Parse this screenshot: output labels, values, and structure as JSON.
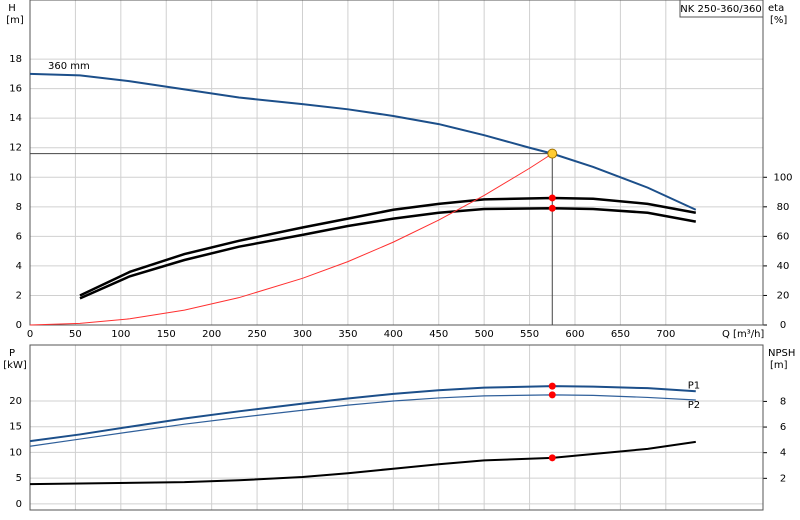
{
  "chart_data": [
    {
      "type": "line",
      "title": "NK 250-360/360",
      "ylabel": "H",
      "yunit": "[m]",
      "y2label": "eta",
      "y2unit": "[%]",
      "xlabel": "Q [m³/h]",
      "xlim": [
        0,
        807
      ],
      "xticks": [
        0,
        50,
        100,
        150,
        200,
        250,
        300,
        350,
        400,
        450,
        500,
        550,
        600,
        650,
        700
      ],
      "ylim": [
        0,
        22
      ],
      "yticks": [
        0,
        2,
        4,
        6,
        8,
        10,
        12,
        14,
        16,
        18
      ],
      "y2lim": [
        0,
        220
      ],
      "y2ticks": [
        0,
        20,
        40,
        60,
        80,
        100
      ],
      "grid": true,
      "series": [
        {
          "name": "360 mm",
          "color": "#1c4f8a",
          "width": 2,
          "x": [
            0,
            55,
            110,
            170,
            230,
            300,
            350,
            400,
            450,
            500,
            550,
            575,
            620,
            680,
            733
          ],
          "values": [
            17.0,
            16.9,
            16.5,
            15.95,
            15.4,
            14.95,
            14.6,
            14.15,
            13.6,
            12.85,
            12.0,
            11.6,
            10.7,
            9.3,
            7.8
          ]
        },
        {
          "color": "#000000",
          "width": 2.5,
          "axis": "y2",
          "x": [
            55,
            110,
            170,
            230,
            300,
            350,
            400,
            450,
            500,
            575,
            620,
            680,
            733
          ],
          "values": [
            20,
            36,
            48,
            57,
            66,
            72,
            78,
            82,
            85,
            86,
            85.5,
            82,
            76
          ]
        },
        {
          "color": "#000000",
          "width": 2.5,
          "axis": "y2",
          "x": [
            55,
            110,
            170,
            230,
            300,
            350,
            400,
            450,
            500,
            575,
            620,
            680,
            733
          ],
          "values": [
            18,
            33,
            44,
            53,
            61,
            67,
            72,
            76,
            78.5,
            79,
            78.5,
            76,
            70
          ]
        },
        {
          "color": "#ff3030",
          "width": 1,
          "x": [
            0,
            55,
            110,
            170,
            230,
            300,
            350,
            400,
            450,
            500,
            550,
            575
          ],
          "values": [
            0,
            0.11,
            0.42,
            1.01,
            1.85,
            3.16,
            4.29,
            5.61,
            7.1,
            8.77,
            10.61,
            11.6
          ]
        }
      ],
      "duty_point": {
        "x": 575,
        "y": 11.6,
        "color": "#ffcc33"
      },
      "markers": [
        {
          "x": 575,
          "y": 86,
          "axis": "y2",
          "color": "#ff0000"
        },
        {
          "x": 575,
          "y": 79,
          "axis": "y2",
          "color": "#ff0000"
        }
      ]
    },
    {
      "type": "line",
      "ylabel": "P",
      "yunit": "[kW]",
      "y2label": "NPSH",
      "y2unit": "[m]",
      "xlim": [
        0,
        807
      ],
      "xgrid": [
        0,
        50,
        100,
        150,
        200,
        250,
        300,
        350,
        400,
        450,
        500,
        550,
        600,
        650,
        700
      ],
      "ylim": [
        -1.2,
        30.9
      ],
      "yticks": [
        0,
        5,
        10,
        15,
        20
      ],
      "y2lim": [
        -0.47,
        12.4
      ],
      "y2ticks": [
        2,
        4,
        6,
        8
      ],
      "grid": true,
      "series": [
        {
          "name": "P1",
          "color": "#1c4f8a",
          "width": 2,
          "x": [
            0,
            55,
            110,
            170,
            230,
            300,
            350,
            400,
            450,
            500,
            575,
            620,
            680,
            733
          ],
          "values": [
            12.2,
            13.5,
            15.0,
            16.6,
            18.0,
            19.5,
            20.5,
            21.4,
            22.1,
            22.6,
            22.9,
            22.8,
            22.5,
            21.9
          ]
        },
        {
          "name": "P2",
          "color": "#2f5f9a",
          "width": 1.2,
          "x": [
            0,
            55,
            110,
            170,
            230,
            300,
            350,
            400,
            450,
            500,
            575,
            620,
            680,
            733
          ],
          "values": [
            11.2,
            12.6,
            14.0,
            15.5,
            16.8,
            18.2,
            19.2,
            20.0,
            20.6,
            21.0,
            21.2,
            21.1,
            20.7,
            20.2
          ]
        },
        {
          "color": "#000000",
          "width": 2,
          "axis": "y2",
          "x": [
            0,
            55,
            170,
            230,
            300,
            350,
            400,
            450,
            500,
            575,
            620,
            680,
            733
          ],
          "values": [
            1.55,
            1.6,
            1.7,
            1.85,
            2.1,
            2.4,
            2.75,
            3.1,
            3.4,
            3.6,
            3.9,
            4.3,
            4.84
          ]
        }
      ],
      "markers": [
        {
          "x": 575,
          "y": 22.9,
          "color": "#ff0000"
        },
        {
          "x": 575,
          "y": 21.2,
          "color": "#ff0000"
        },
        {
          "x": 575,
          "y": 3.6,
          "axis": "y2",
          "color": "#ff0000"
        }
      ]
    }
  ]
}
